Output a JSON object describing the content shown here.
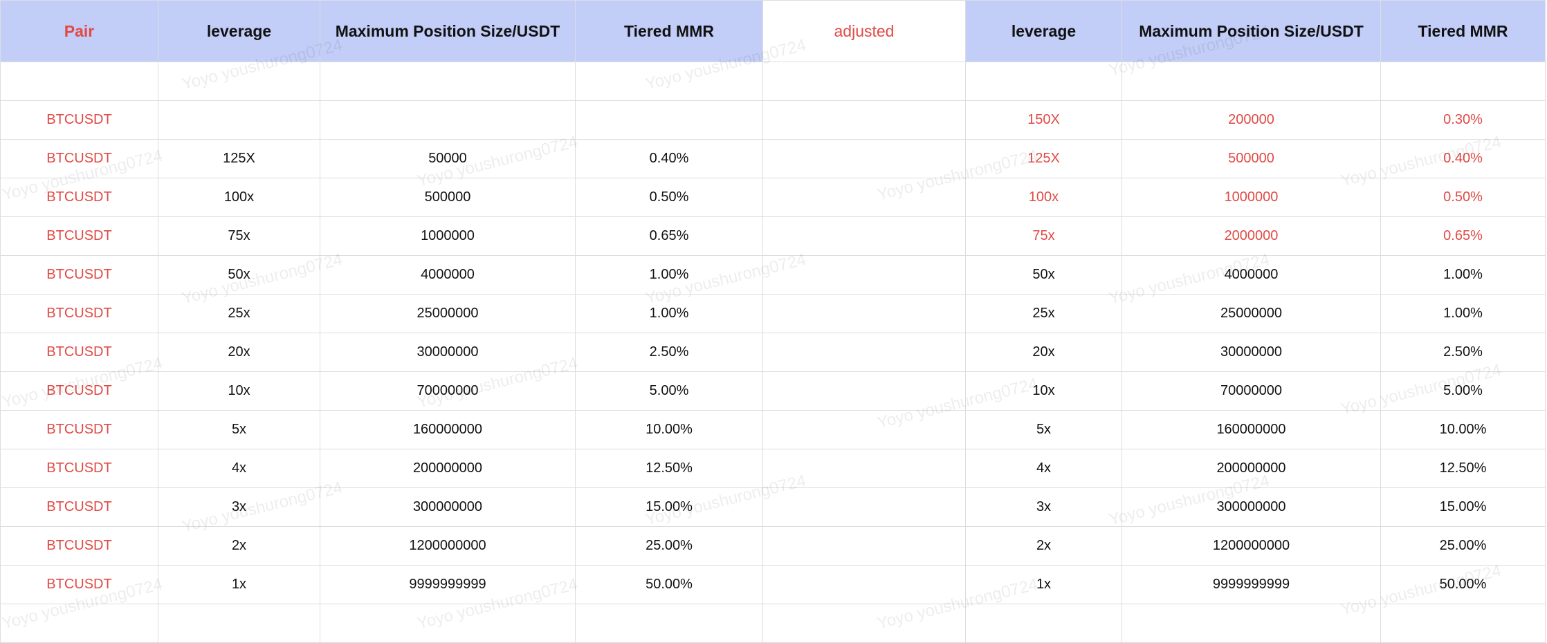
{
  "watermark": "Yoyo youshurong0724",
  "table": {
    "header": [
      "Pair",
      "leverage",
      "Maximum Position Size/USDT",
      "Tiered MMR",
      "adjusted",
      "leverage",
      "Maximum Position Size/USDT",
      "Tiered MMR"
    ],
    "rows": [
      [
        null,
        null,
        null,
        null,
        null,
        null,
        null,
        null
      ],
      [
        "BTCUSDT",
        null,
        null,
        null,
        null,
        "150X",
        "200000",
        "0.30%"
      ],
      [
        "BTCUSDT",
        "125X",
        "50000",
        "0.40%",
        null,
        "125X",
        "500000",
        "0.40%"
      ],
      [
        "BTCUSDT",
        "100x",
        "500000",
        "0.50%",
        null,
        "100x",
        "1000000",
        "0.50%"
      ],
      [
        "BTCUSDT",
        "75x",
        "1000000",
        "0.65%",
        null,
        "75x",
        "2000000",
        "0.65%"
      ],
      [
        "BTCUSDT",
        "50x",
        "4000000",
        "1.00%",
        null,
        "50x",
        "4000000",
        "1.00%"
      ],
      [
        "BTCUSDT",
        "25x",
        "25000000",
        "1.00%",
        null,
        "25x",
        "25000000",
        "1.00%"
      ],
      [
        "BTCUSDT",
        "20x",
        "30000000",
        "2.50%",
        null,
        "20x",
        "30000000",
        "2.50%"
      ],
      [
        "BTCUSDT",
        "10x",
        "70000000",
        "5.00%",
        null,
        "10x",
        "70000000",
        "5.00%"
      ],
      [
        "BTCUSDT",
        "5x",
        "160000000",
        "10.00%",
        null,
        "5x",
        "160000000",
        "10.00%"
      ],
      [
        "BTCUSDT",
        "4x",
        "200000000",
        "12.50%",
        null,
        "4x",
        "200000000",
        "12.50%"
      ],
      [
        "BTCUSDT",
        "3x",
        "300000000",
        "15.00%",
        null,
        "3x",
        "300000000",
        "15.00%"
      ],
      [
        "BTCUSDT",
        "2x",
        "1200000000",
        "25.00%",
        null,
        "2x",
        "1200000000",
        "25.00%"
      ],
      [
        "BTCUSDT",
        "1x",
        "9999999999",
        "50.00%",
        null,
        "1x",
        "9999999999",
        "50.00%"
      ]
    ]
  }
}
